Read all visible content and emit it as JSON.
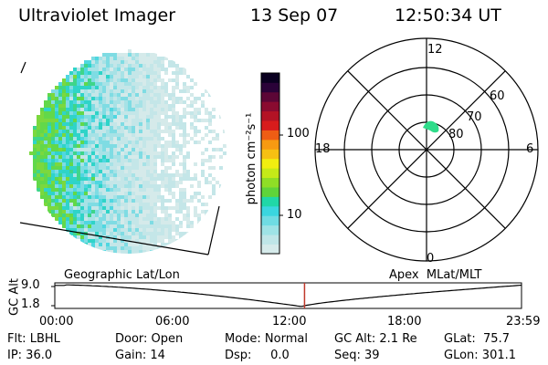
{
  "header": {
    "instrument": "Ultraviolet Imager",
    "date": "13 Sep 07",
    "time": "12:50:34 UT"
  },
  "colorbar": {
    "label": "photon cm⁻²s⁻¹",
    "ticks": [
      "100",
      "10"
    ],
    "colors": [
      "#d6ebeb",
      "#bfe6e8",
      "#9ee3e6",
      "#6fdce3",
      "#3ad6df",
      "#20d7a7",
      "#5fd43a",
      "#8fde26",
      "#c5ea18",
      "#f1ee10",
      "#f6c012",
      "#f79a12",
      "#ee5d14",
      "#d81c1c",
      "#b31325",
      "#8a0b30",
      "#5c0636",
      "#2a0238",
      "#0a0020"
    ]
  },
  "polar": {
    "hour_labels": {
      "top": "12",
      "left": "18",
      "right": "6",
      "bottom": "0"
    },
    "lat_labels": [
      "60",
      "70",
      "80"
    ]
  },
  "timeline": {
    "left_title": "Geographic Lat/Lon",
    "right_title": "Apex  MLat/MLT",
    "y_axis_title": "GC Alt",
    "y_max": "9.0",
    "y_min": "1.8",
    "x_ticks": [
      "00:00",
      "06:00",
      "12:00",
      "18:00",
      "23:59"
    ],
    "current_time_hours": 12.842
  },
  "status": {
    "filter": "Flt: LBHL",
    "door": "Door: Open",
    "mode": "Mode: Normal",
    "gc_alt": "GC Alt: 2.1 Re",
    "glat": "GLat:  75.7",
    "ip": "IP: 36.0",
    "gain": "Gain: 14",
    "dsp": "Dsp:     0.0",
    "seq": "Seq: 39",
    "glon": "GLon: 301.1"
  },
  "colors": {
    "marker": "#c0392b",
    "aurora_spot": "#2fdc8a"
  }
}
